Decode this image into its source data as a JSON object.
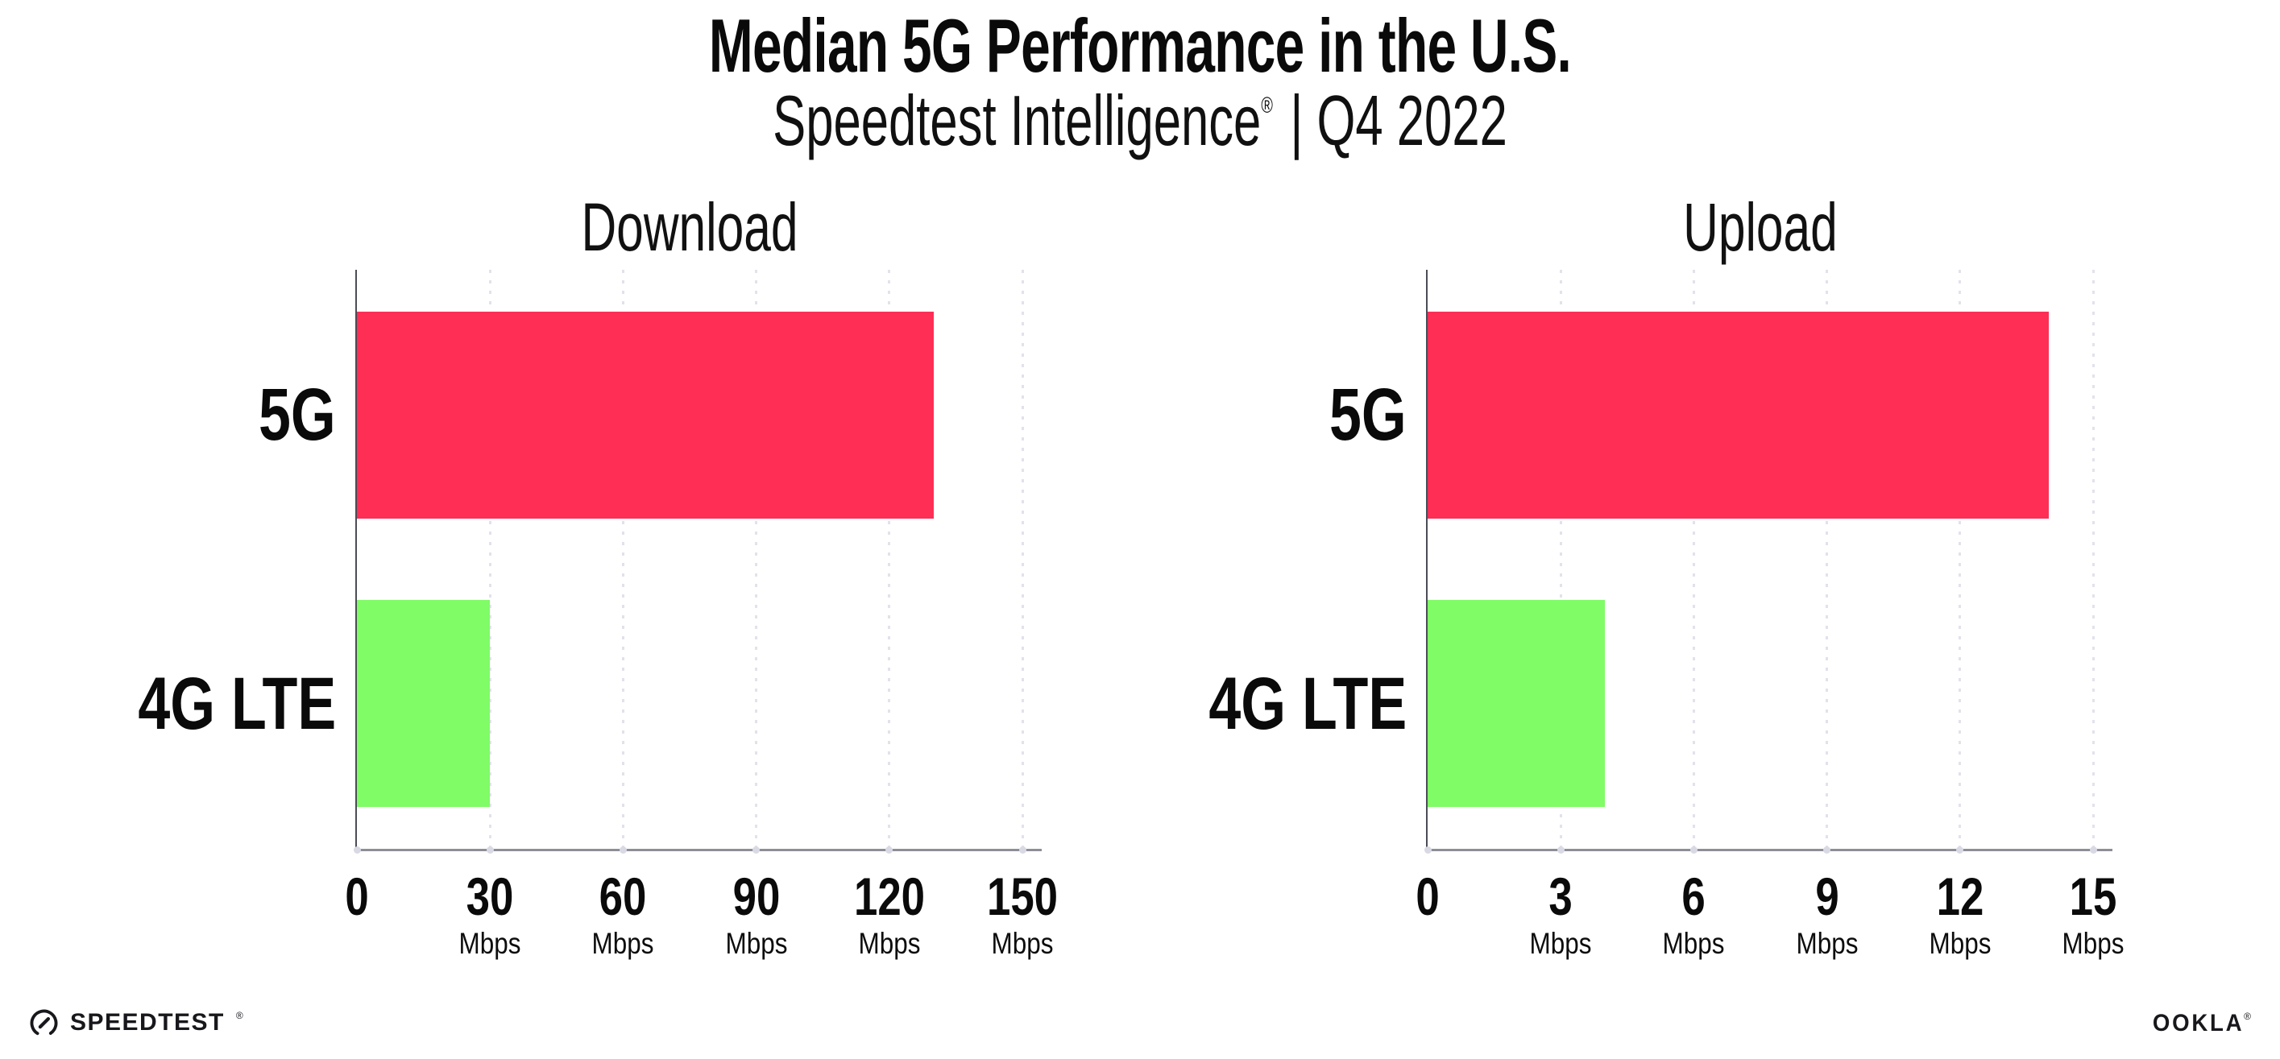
{
  "header": {
    "title": "Median 5G Performance in the U.S.",
    "subtitle_brand": "Speedtest Intelligence",
    "subtitle_registered": "®",
    "subtitle_period": "| Q4 2022"
  },
  "colors": {
    "bar_5g": "#FF2E55",
    "bar_4g_lte": "#7FFC66",
    "gridline": "#E2E2EC",
    "x_axis_line": "#8E8E98",
    "y_axis_line": "#4A4D55",
    "tick_dot": "#D9D9E4",
    "text": "#0A0A0A",
    "background": "#FFFFFF"
  },
  "chart_data": [
    {
      "type": "bar",
      "orientation": "horizontal",
      "title": "Download",
      "categories": [
        "5G",
        "4G LTE"
      ],
      "values": [
        130,
        30
      ],
      "unit": "Mbps",
      "xlim": [
        0,
        150
      ],
      "xticks": [
        0,
        30,
        60,
        90,
        120,
        150
      ],
      "bar_colors": [
        "#FF2E55",
        "#7FFC66"
      ],
      "grid": "vertical-dotted",
      "legend": "none"
    },
    {
      "type": "bar",
      "orientation": "horizontal",
      "title": "Upload",
      "categories": [
        "5G",
        "4G LTE"
      ],
      "values": [
        14,
        4
      ],
      "unit": "Mbps",
      "xlim": [
        0,
        15
      ],
      "xticks": [
        0,
        3,
        6,
        9,
        12,
        15
      ],
      "bar_colors": [
        "#FF2E55",
        "#7FFC66"
      ],
      "grid": "vertical-dotted",
      "legend": "none"
    }
  ],
  "footer": {
    "speedtest_label": "SPEEDTEST",
    "speedtest_mark": "®",
    "ookla_label": "OOKLA",
    "ookla_mark": "®"
  }
}
